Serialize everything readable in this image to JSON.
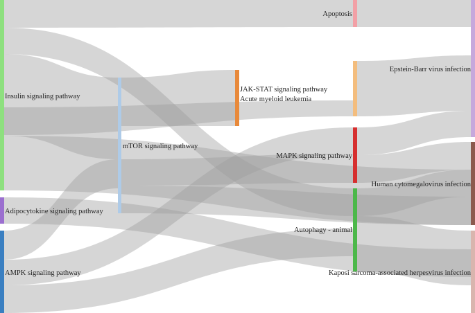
{
  "diagram": {
    "type": "sankey",
    "link_color": "#9e9e9e",
    "columns": [
      {
        "nodes": [
          {
            "id": "insulin",
            "label": "Insulin signaling pathway",
            "color": "#8ee07f"
          },
          {
            "id": "adipocytokine",
            "label": "Adipocytokine signaling pathway",
            "color": "#9b6fcf"
          },
          {
            "id": "ampk",
            "label": "AMPK signaling pathway",
            "color": "#3a7fc1"
          }
        ]
      },
      {
        "nodes": [
          {
            "id": "mtor",
            "label": "mTOR signaling pathway",
            "color": "#aecbe8"
          }
        ]
      },
      {
        "nodes": [
          {
            "id": "jakstat_aml",
            "label": "JAK-STAT signaling pathway",
            "label2": "Acute myeloid leukemia",
            "color": "#e8893a"
          }
        ]
      },
      {
        "nodes": [
          {
            "id": "apoptosis",
            "label": "Apoptosis",
            "color": "#f2a0a6"
          },
          {
            "id": "jakstat2",
            "label": "",
            "color": "#f3bd7e"
          },
          {
            "id": "mapk",
            "label": "MAPK signaling pathway",
            "color": "#d62f2f"
          },
          {
            "id": "autophagy",
            "label": "Autophagy - animal",
            "color": "#4cb84a"
          }
        ]
      },
      {
        "nodes": [
          {
            "id": "ebv",
            "label": "Epstein-Barr virus infection",
            "color": "#c7a8dc"
          },
          {
            "id": "hcmv",
            "label": "Human cytomegalovirus infection",
            "color": "#8c5a4e"
          },
          {
            "id": "kshv",
            "label": "Kaposi sarcoma-associated herpesvirus infection",
            "color": "#d9b5ae"
          }
        ]
      }
    ],
    "links": [
      {
        "source": "insulin",
        "target": "apoptosis"
      },
      {
        "source": "insulin",
        "target": "mtor"
      },
      {
        "source": "insulin",
        "target": "jakstat2"
      },
      {
        "source": "insulin",
        "target": "hcmv"
      },
      {
        "source": "insulin",
        "target": "autophagy"
      },
      {
        "source": "adipocytokine",
        "target": "kshv"
      },
      {
        "source": "ampk",
        "target": "mtor"
      },
      {
        "source": "ampk",
        "target": "mapk"
      },
      {
        "source": "ampk",
        "target": "autophagy"
      },
      {
        "source": "mtor",
        "target": "jakstat_aml"
      },
      {
        "source": "mtor",
        "target": "mapk"
      },
      {
        "source": "mtor",
        "target": "hcmv"
      },
      {
        "source": "apoptosis",
        "target": "ebv"
      },
      {
        "source": "jakstat2",
        "target": "ebv"
      },
      {
        "source": "mapk",
        "target": "ebv"
      },
      {
        "source": "mapk",
        "target": "hcmv"
      },
      {
        "source": "autophagy",
        "target": "hcmv"
      },
      {
        "source": "autophagy",
        "target": "kshv"
      }
    ]
  }
}
